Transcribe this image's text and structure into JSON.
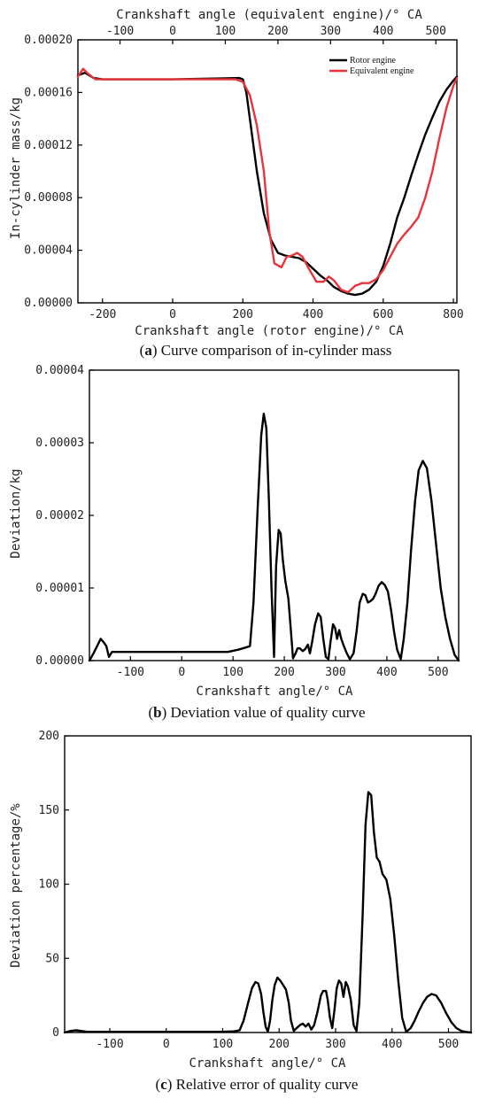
{
  "figure": {
    "captions": [
      {
        "tag": "a",
        "text": "Curve comparison of in-cylinder mass"
      },
      {
        "tag": "b",
        "text": "Deviation value of quality curve"
      },
      {
        "tag": "c",
        "text": "Relative error of quality curve"
      }
    ]
  },
  "chart_data": [
    {
      "type": "line",
      "xlabel": "Crankshaft angle (rotor engine)/° CA",
      "x2label": "Crankshaft angle (equivalent engine)/° CA",
      "ylabel": "In-cylinder mass/kg",
      "xlim": [
        -270,
        810
      ],
      "x2lim": [
        -180,
        540
      ],
      "ylim": [
        0,
        0.0002
      ],
      "xticks": [
        -200,
        0,
        200,
        400,
        600,
        800
      ],
      "x2ticks": [
        -100,
        0,
        100,
        200,
        300,
        400,
        500
      ],
      "yticks": [
        0,
        4e-05,
        8e-05,
        0.00012,
        0.00016,
        0.0002
      ],
      "ytick_labels": [
        "0.00000",
        "0.00004",
        "0.00008",
        "0.00012",
        "0.00016",
        "0.00020"
      ],
      "legend_position": "top-right",
      "grid": false,
      "series": [
        {
          "name": "Rotor engine",
          "color": "#000000",
          "x": [
            -270,
            -250,
            -225,
            -200,
            0,
            190,
            200,
            210,
            220,
            240,
            260,
            280,
            300,
            320,
            340,
            360,
            380,
            400,
            420,
            440,
            460,
            480,
            500,
            520,
            540,
            560,
            580,
            600,
            620,
            640,
            660,
            680,
            700,
            720,
            740,
            760,
            780,
            800,
            810
          ],
          "y": [
            0.000173,
            0.000175,
            0.000171,
            0.00017,
            0.00017,
            0.000171,
            0.00017,
            0.00016,
            0.00014,
            0.0001,
            6.8e-05,
            4.8e-05,
            3.8e-05,
            3.6e-05,
            3.5e-05,
            3.4e-05,
            3.1e-05,
            2.6e-05,
            2.1e-05,
            1.7e-05,
            1.2e-05,
            9e-06,
            7e-06,
            6e-06,
            7e-06,
            1e-05,
            1.6e-05,
            2.8e-05,
            4.5e-05,
            6.5e-05,
            8e-05,
            9.7e-05,
            0.000113,
            0.000128,
            0.000141,
            0.000153,
            0.000162,
            0.000169,
            0.000172
          ]
        },
        {
          "name": "Equivalent engine",
          "color": "#e8343a",
          "x": [
            -270,
            -255,
            -240,
            -220,
            0,
            180,
            200,
            220,
            240,
            260,
            275,
            290,
            310,
            325,
            340,
            355,
            370,
            390,
            410,
            430,
            445,
            460,
            480,
            500,
            520,
            540,
            560,
            580,
            600,
            620,
            640,
            660,
            680,
            700,
            720,
            740,
            760,
            780,
            800,
            810
          ],
          "y": [
            0.000172,
            0.000178,
            0.000174,
            0.00017,
            0.00017,
            0.00017,
            0.000168,
            0.000158,
            0.000135,
            0.0001,
            5.5e-05,
            3e-05,
            2.7e-05,
            3.5e-05,
            3.6e-05,
            3.8e-05,
            3.5e-05,
            2.5e-05,
            1.6e-05,
            1.6e-05,
            2e-05,
            1.7e-05,
            1e-05,
            8e-06,
            1.3e-05,
            1.5e-05,
            1.5e-05,
            1.8e-05,
            2.5e-05,
            3.5e-05,
            4.5e-05,
            5.2e-05,
            5.8e-05,
            6.5e-05,
            8e-05,
            0.0001,
            0.000125,
            0.000148,
            0.000165,
            0.000171
          ]
        }
      ]
    },
    {
      "type": "line",
      "xlabel": "Crankshaft angle/° CA",
      "ylabel": "Deviation/kg",
      "xlim": [
        -180,
        540
      ],
      "ylim": [
        0,
        4e-05
      ],
      "xticks": [
        -100,
        0,
        100,
        200,
        300,
        400,
        500
      ],
      "yticks": [
        0,
        1e-05,
        2e-05,
        3e-05,
        4e-05
      ],
      "ytick_labels": [
        "0.00000",
        "0.00001",
        "0.00002",
        "0.00003",
        "0.00004"
      ],
      "grid": false,
      "series": [
        {
          "color": "#000000",
          "x": [
            -180,
            -172,
            -165,
            -158,
            -152,
            -147,
            -142,
            -136,
            -125,
            -100,
            0,
            90,
            110,
            125,
            133,
            140,
            148,
            155,
            160,
            165,
            170,
            175,
            180,
            184,
            189,
            193,
            197,
            202,
            208,
            213,
            217,
            222,
            226,
            230,
            236,
            241,
            246,
            250,
            254,
            260,
            266,
            271,
            276,
            281,
            286,
            290,
            295,
            299,
            303,
            307,
            311,
            316,
            322,
            328,
            335,
            341,
            347,
            353,
            358,
            363,
            368,
            373,
            378,
            384,
            390,
            396,
            402,
            408,
            414,
            420,
            427,
            433,
            440,
            447,
            455,
            462,
            470,
            478,
            487,
            496,
            505,
            514,
            523,
            532,
            540
          ],
          "y": [
            0,
            1e-06,
            2e-06,
            3e-06,
            2.5e-06,
            2e-06,
            5e-07,
            1.2e-06,
            1.2e-06,
            1.2e-06,
            1.2e-06,
            1.2e-06,
            1.5e-06,
            1.8e-06,
            2e-06,
            8e-06,
            2.1e-05,
            3.1e-05,
            3.4e-05,
            3.2e-05,
            2.2e-05,
            1e-05,
            5e-07,
            1.3e-05,
            1.8e-05,
            1.75e-05,
            1.4e-05,
            1.1e-05,
            8.5e-06,
            4e-06,
            3e-07,
            1e-06,
            1.7e-06,
            1.7e-06,
            1.3e-06,
            1.6e-06,
            2.2e-06,
            1e-06,
            2.5e-06,
            5e-06,
            6.5e-06,
            6e-06,
            3e-06,
            5e-07,
            2e-07,
            2.5e-06,
            5e-06,
            4.5e-06,
            3e-06,
            4.2e-06,
            3e-06,
            2e-06,
            1e-06,
            2e-07,
            1e-06,
            4e-06,
            8e-06,
            9.2e-06,
            9e-06,
            8e-06,
            8.2e-06,
            8.5e-06,
            9.2e-06,
            1.03e-05,
            1.08e-05,
            1.04e-05,
            9.5e-06,
            7e-06,
            4e-06,
            1.5e-06,
            2e-07,
            3e-06,
            8e-06,
            1.5e-05,
            2.2e-05,
            2.62e-05,
            2.75e-05,
            2.65e-05,
            2.2e-05,
            1.6e-05,
            1e-05,
            6e-06,
            3e-06,
            8e-07,
            0
          ]
        }
      ]
    },
    {
      "type": "line",
      "xlabel": "Crankshaft angle/° CA",
      "ylabel": "Deviation percentage/%",
      "xlim": [
        -180,
        540
      ],
      "ylim": [
        0,
        200
      ],
      "xticks": [
        -100,
        0,
        100,
        200,
        300,
        400,
        500
      ],
      "yticks": [
        0,
        50,
        100,
        150,
        200
      ],
      "ytick_labels": [
        "0",
        "50",
        "100",
        "150",
        "200"
      ],
      "grid": false,
      "series": [
        {
          "color": "#000000",
          "x": [
            -180,
            -170,
            -160,
            -150,
            -140,
            -120,
            -100,
            0,
            100,
            120,
            130,
            137,
            145,
            152,
            158,
            163,
            168,
            172,
            176,
            180,
            184,
            188,
            192,
            197,
            202,
            207,
            212,
            217,
            221,
            226,
            231,
            237,
            242,
            247,
            252,
            257,
            262,
            268,
            274,
            278,
            283,
            286,
            290,
            294,
            298,
            302,
            306,
            310,
            314,
            318,
            322,
            327,
            332,
            337,
            342,
            348,
            353,
            358,
            363,
            368,
            373,
            378,
            383,
            390,
            397,
            404,
            411,
            418,
            425,
            433,
            440,
            447,
            455,
            462,
            470,
            478,
            487,
            496,
            505,
            514,
            523,
            532,
            540
          ],
          "y": [
            0,
            1,
            1.5,
            1,
            0.5,
            0.5,
            0.5,
            0.5,
            0.5,
            0.8,
            1.5,
            8,
            20,
            30,
            34,
            33,
            26,
            14,
            4,
            0.5,
            8,
            22,
            32,
            37,
            35,
            32,
            29,
            20,
            8,
            1,
            3,
            5,
            6,
            4,
            6,
            2,
            5,
            14,
            25,
            28,
            28,
            22,
            10,
            3,
            15,
            30,
            35,
            33,
            24,
            34,
            31,
            22,
            5,
            1,
            20,
            80,
            140,
            162,
            160,
            135,
            118,
            115,
            107,
            103,
            90,
            65,
            35,
            10,
            0.5,
            3,
            8,
            14,
            20,
            24,
            26,
            25,
            20,
            13,
            7,
            3,
            1,
            0.3,
            0
          ]
        }
      ]
    }
  ]
}
